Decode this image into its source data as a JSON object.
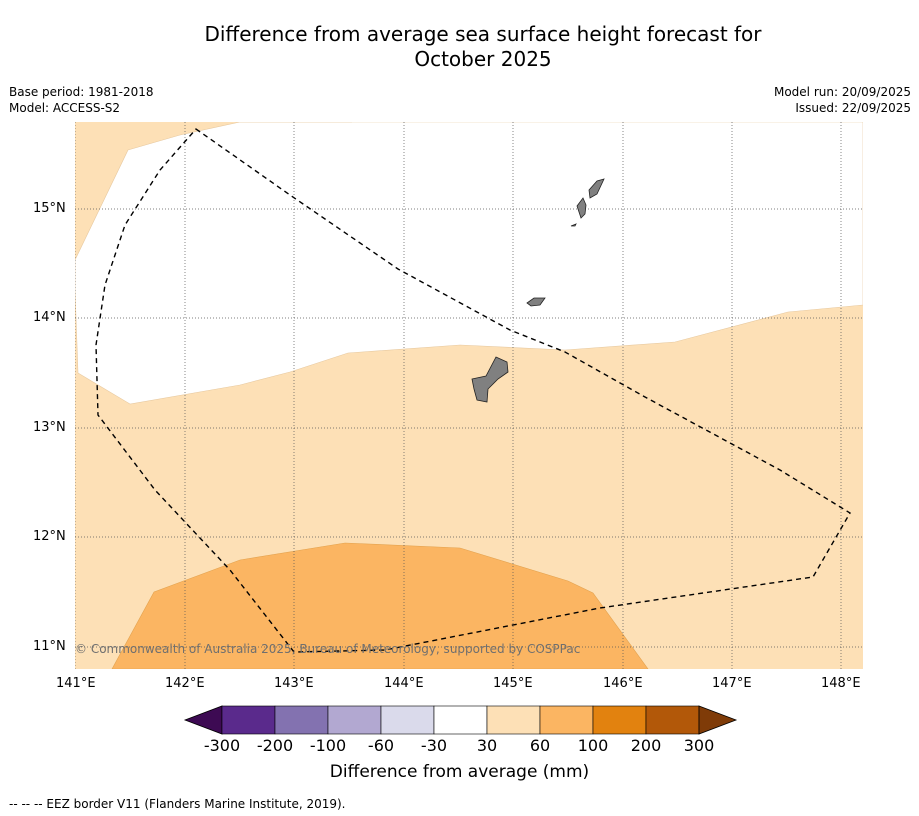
{
  "title_line1": "Difference from average sea surface height forecast for",
  "title_line2": "October 2025",
  "meta_left": {
    "base_period": "Base period: 1981-2018",
    "model": "Model: ACCESS-S2"
  },
  "meta_right": {
    "model_run": "Model run: 20/09/2025",
    "issued": "Issued: 22/09/2025"
  },
  "lat_labels": [
    "15°N",
    "14°N",
    "13°N",
    "12°N",
    "11°N"
  ],
  "lon_labels": [
    "141°E",
    "142°E",
    "143°E",
    "144°E",
    "145°E",
    "146°E",
    "147°E",
    "148°E"
  ],
  "credit": "© Commonwealth of Australia 2025, Bureau of Meteorology, supported by COSPPac",
  "colorbar": {
    "colors": [
      "#3d0a53",
      "#5a2a8c",
      "#8372b0",
      "#b2a8d1",
      "#dadaeb",
      "#ffffff",
      "#fde0b6",
      "#fbb562",
      "#e2820f",
      "#b25809",
      "#7f3b08"
    ],
    "labels": [
      "-300",
      "-200",
      "-100",
      "-60",
      "-30",
      "30",
      "60",
      "100",
      "200",
      "300"
    ],
    "title": "Difference from average (mm)"
  },
  "footer": "--  --  -- EEZ border V11 (Flanders Marine Institute, 2019).",
  "palette": {
    "light_orange": "#fde0b6",
    "mid_orange": "#fbb562",
    "land": "#808080"
  }
}
